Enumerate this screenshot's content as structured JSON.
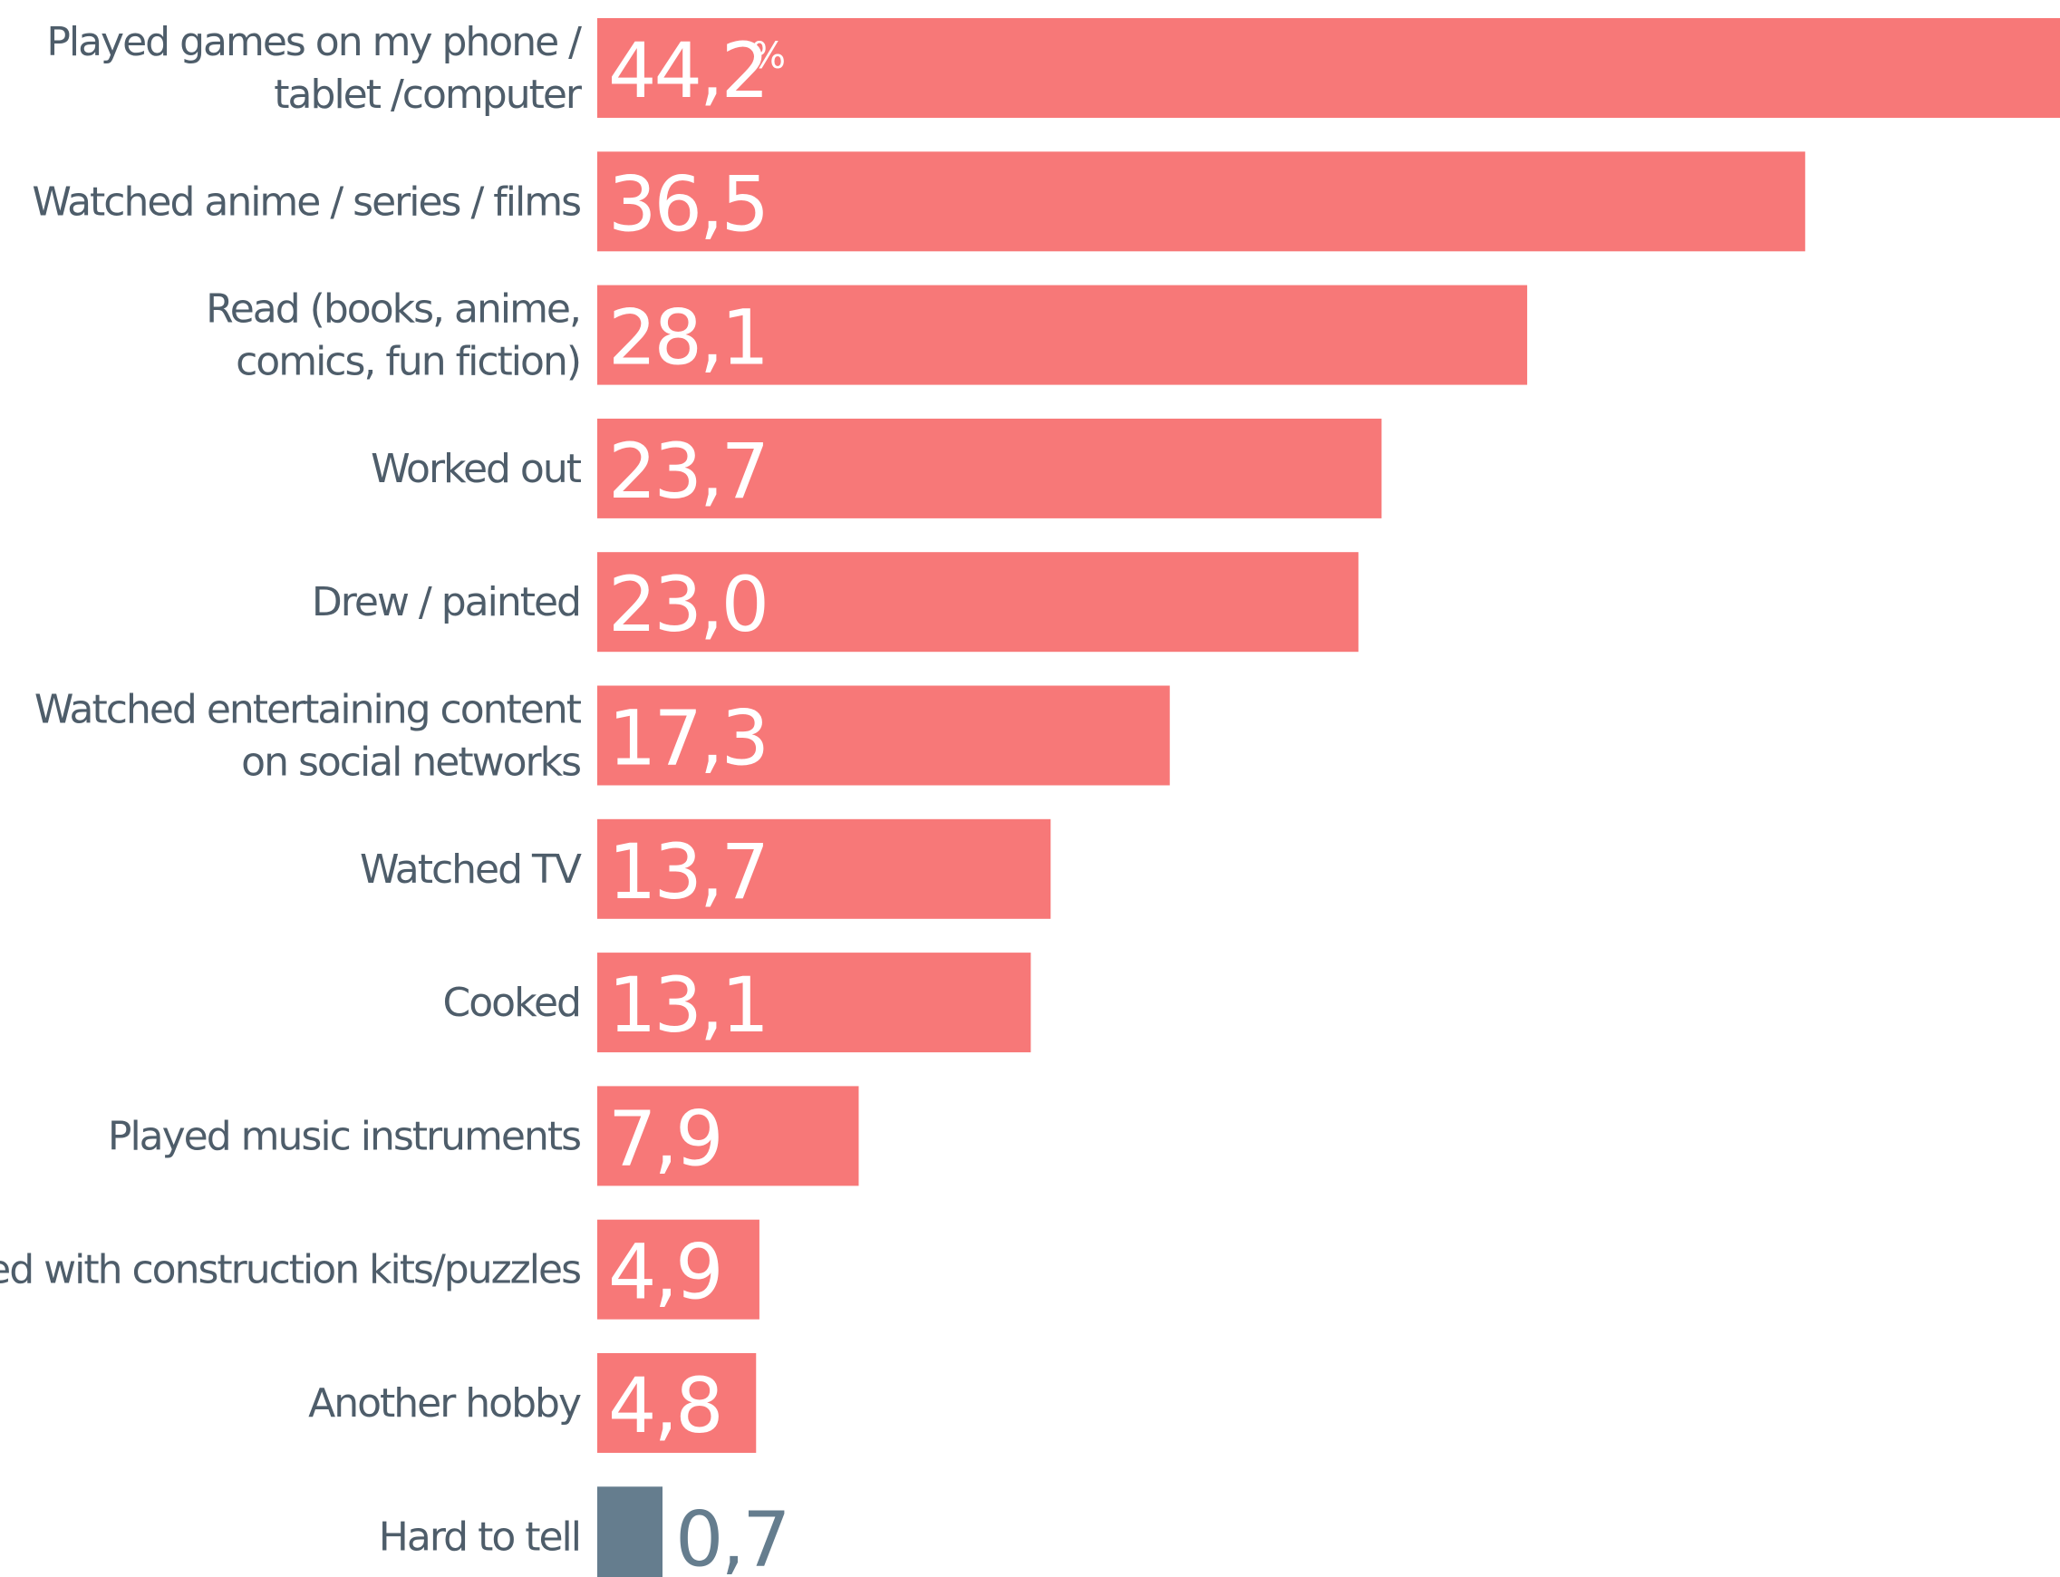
{
  "chart_data": {
    "type": "bar",
    "orientation": "horizontal",
    "unit": "%",
    "categories": [
      [
        "Played games on my phone /",
        "tablet /computer"
      ],
      [
        "Watched anime / series / films"
      ],
      [
        "Read (books, anime,",
        "comics, fun fiction)"
      ],
      [
        "Worked out"
      ],
      [
        "Drew / painted"
      ],
      [
        "Watched entertaining content",
        "on social networks"
      ],
      [
        "Watched TV"
      ],
      [
        "Cooked"
      ],
      [
        "Played music instruments"
      ],
      [
        "Played with construction kits/puzzles"
      ],
      [
        "Another hobby"
      ],
      [
        "Hard to tell"
      ]
    ],
    "values": [
      44.2,
      36.5,
      28.1,
      23.7,
      23.0,
      17.3,
      13.7,
      13.1,
      7.9,
      4.9,
      4.8,
      0.7
    ],
    "value_labels": [
      "44,2",
      "36,5",
      "28,1",
      "23,7",
      "23,0",
      "17,3",
      "13,7",
      "13,1",
      "7,9",
      "4,9",
      "4,8",
      "0,7"
    ],
    "colors": {
      "bar": "#f77878",
      "bar_hard_to_tell": "#657d8e",
      "label_inside": "#ffffff",
      "label_outside": "#657d8e",
      "category_text": "#4e5d6a"
    },
    "title": "",
    "xlabel": "",
    "ylabel": "",
    "grid": false,
    "legend": "none"
  }
}
